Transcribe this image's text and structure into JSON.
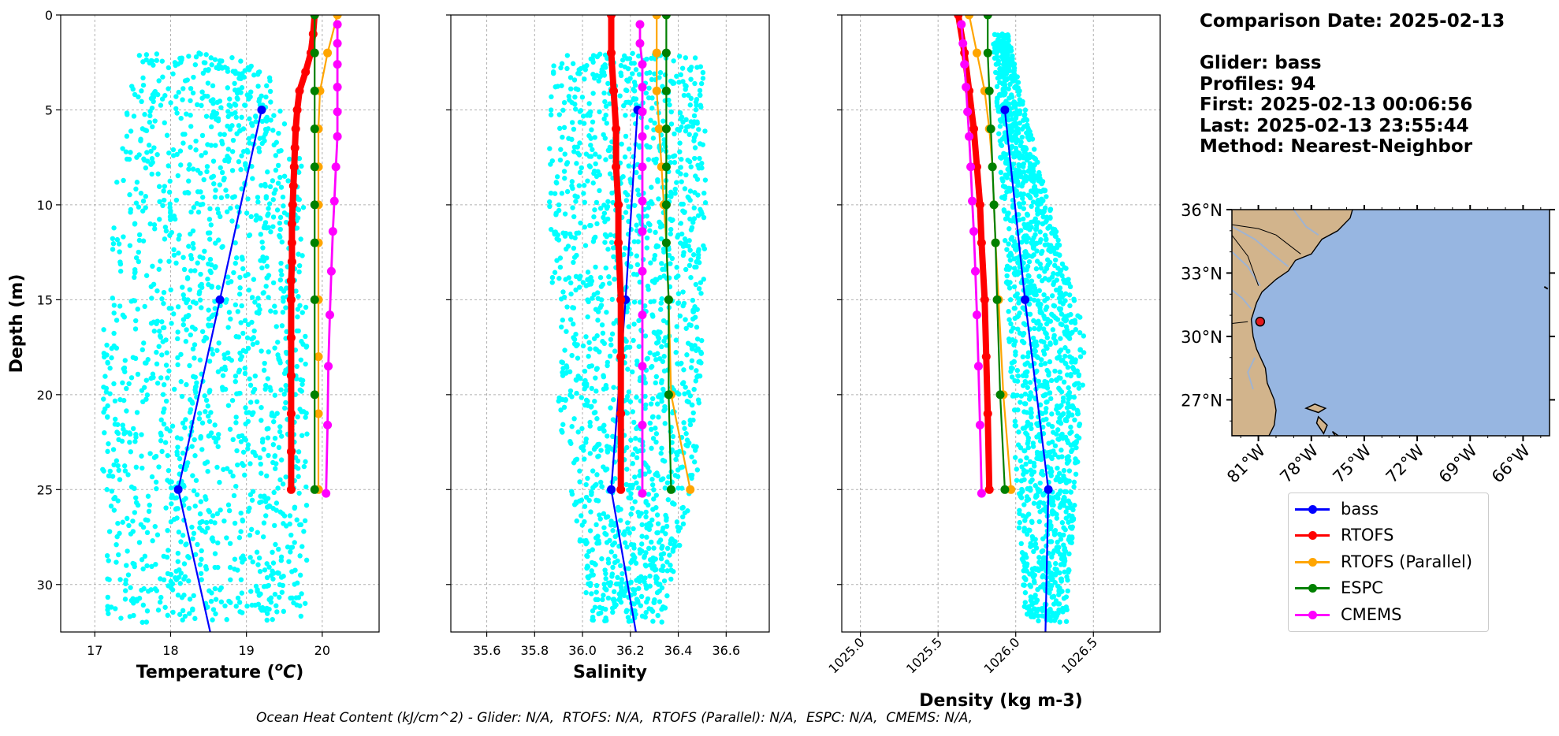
{
  "info": {
    "comparison_date": "Comparison Date: 2025-02-13",
    "glider": "Glider: bass",
    "profiles": "Profiles: 94",
    "first": "First: 2025-02-13 00:06:56",
    "last": "Last: 2025-02-13 23:55:44",
    "method": "Method: Nearest-Neighbor"
  },
  "caption": "Ocean Heat Content (kJ/cm^2) - Glider: N/A,  RTOFS: N/A,  RTOFS (Parallel): N/A,  ESPC: N/A,  CMEMS: N/A,",
  "legend": [
    {
      "label": "bass",
      "color": "#0000ff"
    },
    {
      "label": "RTOFS",
      "color": "#ff0000"
    },
    {
      "label": "RTOFS (Parallel)",
      "color": "#ffa500"
    },
    {
      "label": "ESPC",
      "color": "#008000"
    },
    {
      "label": "CMEMS",
      "color": "#ff00ff"
    }
  ],
  "colors": {
    "glider_scatter": "#00ffff",
    "land": "#d2b48c",
    "ocean": "#97b6e1"
  },
  "chart_data": [
    {
      "type": "line",
      "xlabel": "Temperature",
      "xlabel_unit": "(°C)",
      "ylabel": "Depth (m)",
      "xlim": [
        16.55,
        20.75
      ],
      "ylim": [
        32.5,
        0
      ],
      "xticks": [
        "17",
        "18",
        "19",
        "20"
      ],
      "yticks": [
        "0",
        "5",
        "10",
        "15",
        "20",
        "25",
        "30"
      ],
      "grid": true,
      "scatter_band": {
        "left": [
          17.55,
          17.3,
          17.1,
          17.1,
          17.15
        ],
        "right": [
          19.2,
          19.75,
          19.8,
          19.8,
          19.8
        ],
        "depths": [
          2,
          8,
          17,
          24,
          31
        ]
      },
      "series": [
        {
          "name": "bass",
          "depth": [
            5,
            15,
            25,
            33
          ],
          "values": [
            19.2,
            18.65,
            18.1,
            18.55
          ]
        },
        {
          "name": "RTOFS",
          "depth": [
            0,
            1,
            2,
            3,
            4,
            5,
            6,
            7,
            8,
            9,
            10,
            11,
            12,
            13,
            14,
            15,
            17,
            19,
            21,
            23,
            25
          ],
          "values": [
            19.9,
            19.88,
            19.85,
            19.78,
            19.7,
            19.67,
            19.65,
            19.64,
            19.63,
            19.62,
            19.61,
            19.6,
            19.6,
            19.6,
            19.59,
            19.59,
            19.59,
            19.59,
            19.59,
            19.59,
            19.59
          ]
        },
        {
          "name": "RTOFS (Parallel)",
          "depth": [
            0,
            2,
            4,
            6,
            8,
            10,
            12,
            15,
            18,
            21,
            25
          ],
          "values": [
            20.2,
            20.07,
            19.97,
            19.95,
            19.95,
            19.95,
            19.95,
            19.95,
            19.95,
            19.95,
            19.95
          ]
        },
        {
          "name": "ESPC",
          "depth": [
            0,
            2,
            4,
            6,
            8,
            10,
            12,
            15,
            20,
            25
          ],
          "values": [
            19.9,
            19.9,
            19.9,
            19.9,
            19.9,
            19.9,
            19.9,
            19.9,
            19.9,
            19.9
          ]
        },
        {
          "name": "CMEMS",
          "depth": [
            0.5,
            1.5,
            2.6,
            3.8,
            5.1,
            6.4,
            8.0,
            9.8,
            11.4,
            13.5,
            15.8,
            18.5,
            21.6,
            25.2
          ],
          "values": [
            20.2,
            20.2,
            20.2,
            20.2,
            20.2,
            20.2,
            20.18,
            20.16,
            20.14,
            20.12,
            20.1,
            20.08,
            20.07,
            20.05
          ]
        }
      ]
    },
    {
      "type": "line",
      "xlabel": "Salinity",
      "xlim": [
        35.45,
        36.78
      ],
      "ylim": [
        32.5,
        0
      ],
      "xticks": [
        "35.6",
        "35.8",
        "36.0",
        "36.2",
        "36.4",
        "36.6"
      ],
      "grid": true,
      "scatter_band": {
        "left": [
          35.88,
          35.85,
          35.88,
          35.92,
          36.02
        ],
        "right": [
          36.5,
          36.52,
          36.5,
          36.48,
          36.35
        ],
        "depths": [
          2,
          8,
          17,
          24,
          31
        ]
      },
      "series": [
        {
          "name": "bass",
          "depth": [
            5,
            15,
            25,
            33
          ],
          "values": [
            36.23,
            36.18,
            36.12,
            36.23
          ]
        },
        {
          "name": "RTOFS",
          "depth": [
            0,
            2,
            4,
            6,
            8,
            10,
            12,
            15,
            18,
            21,
            25
          ],
          "values": [
            36.12,
            36.12,
            36.13,
            36.14,
            36.14,
            36.15,
            36.15,
            36.16,
            36.16,
            36.16,
            36.16
          ]
        },
        {
          "name": "RTOFS (Parallel)",
          "depth": [
            0,
            2,
            4,
            6,
            8,
            10,
            12,
            15,
            20,
            25
          ],
          "values": [
            36.31,
            36.31,
            36.31,
            36.32,
            36.33,
            36.34,
            36.35,
            36.36,
            36.37,
            36.45
          ]
        },
        {
          "name": "ESPC",
          "depth": [
            0,
            2,
            4,
            6,
            8,
            10,
            12,
            15,
            20,
            25
          ],
          "values": [
            36.35,
            36.35,
            36.35,
            36.35,
            36.35,
            36.35,
            36.35,
            36.36,
            36.36,
            36.37
          ]
        },
        {
          "name": "CMEMS",
          "depth": [
            0.5,
            1.5,
            2.6,
            3.8,
            5.1,
            6.4,
            8.0,
            9.8,
            11.4,
            13.5,
            15.8,
            18.5,
            21.6,
            25.2
          ],
          "values": [
            36.24,
            36.24,
            36.25,
            36.25,
            36.25,
            36.25,
            36.25,
            36.25,
            36.25,
            36.25,
            36.25,
            36.25,
            36.25,
            36.25
          ]
        }
      ]
    },
    {
      "type": "line",
      "xlabel": "Density (kg m-3)",
      "xlim": [
        1024.88,
        1026.93
      ],
      "ylim": [
        32.5,
        0
      ],
      "xticks": [
        "1025.0",
        "1025.5",
        "1026.0",
        "1026.5"
      ],
      "grid": true,
      "scatter_band": {
        "left": [
          1025.85,
          1025.9,
          1025.95,
          1026.0,
          1026.05
        ],
        "right": [
          1025.95,
          1026.15,
          1026.45,
          1026.4,
          1026.33
        ],
        "depths": [
          1,
          8,
          17,
          24,
          31
        ]
      },
      "series": [
        {
          "name": "bass",
          "depth": [
            5,
            15,
            25,
            33
          ],
          "values": [
            1025.93,
            1026.06,
            1026.21,
            1026.19
          ]
        },
        {
          "name": "RTOFS",
          "depth": [
            0,
            2,
            4,
            6,
            8,
            10,
            12,
            15,
            18,
            21,
            25
          ],
          "values": [
            1025.63,
            1025.67,
            1025.7,
            1025.73,
            1025.75,
            1025.77,
            1025.78,
            1025.8,
            1025.81,
            1025.82,
            1025.83
          ]
        },
        {
          "name": "RTOFS (Parallel)",
          "depth": [
            0,
            2,
            4,
            6,
            8,
            10,
            12,
            15,
            20,
            25
          ],
          "values": [
            1025.7,
            1025.75,
            1025.8,
            1025.83,
            1025.85,
            1025.86,
            1025.87,
            1025.89,
            1025.92,
            1025.97
          ]
        },
        {
          "name": "ESPC",
          "depth": [
            0,
            2,
            4,
            6,
            8,
            10,
            12,
            15,
            20,
            25
          ],
          "values": [
            1025.82,
            1025.82,
            1025.83,
            1025.84,
            1025.85,
            1025.86,
            1025.87,
            1025.88,
            1025.9,
            1025.93
          ]
        },
        {
          "name": "CMEMS",
          "depth": [
            0.5,
            1.5,
            2.6,
            3.8,
            5.1,
            6.4,
            8.0,
            9.8,
            11.4,
            13.5,
            15.8,
            18.5,
            21.6,
            25.2
          ],
          "values": [
            1025.65,
            1025.66,
            1025.67,
            1025.68,
            1025.69,
            1025.7,
            1025.71,
            1025.72,
            1025.73,
            1025.74,
            1025.75,
            1025.76,
            1025.77,
            1025.78
          ]
        }
      ]
    }
  ],
  "map": {
    "lat_ticks": [
      "36°N",
      "33°N",
      "30°N",
      "27°N"
    ],
    "lon_ticks": [
      "81°W",
      "78°W",
      "75°W",
      "72°W",
      "69°W",
      "66°W"
    ],
    "glider_position": {
      "lon": -80.9,
      "lat": 30.7
    }
  }
}
